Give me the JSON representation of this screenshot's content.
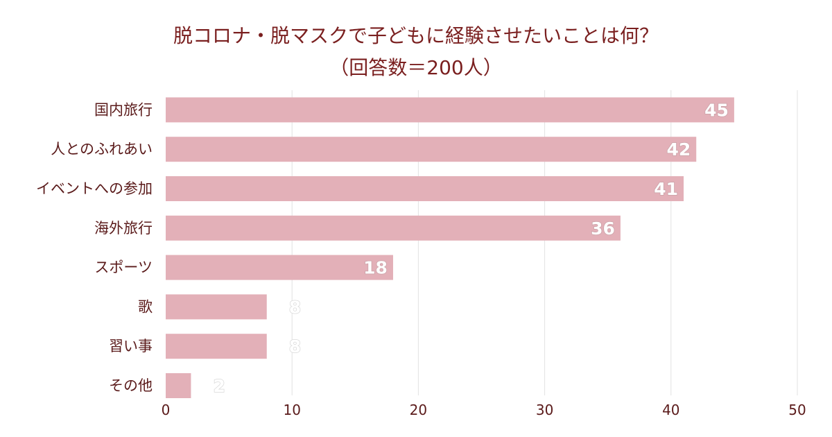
{
  "chart_data": {
    "type": "bar",
    "orientation": "horizontal",
    "title": "脱コロナ・脱マスクで子どもに経験させたいことは何？",
    "subtitle": "（回答数＝200人）",
    "categories": [
      "国内旅行",
      "人とのふれあい",
      "イベントへの参加",
      "海外旅行",
      "スポーツ",
      "歌",
      "習い事",
      "その他"
    ],
    "values": [
      45,
      42,
      41,
      36,
      18,
      8,
      8,
      2
    ],
    "xlim": [
      0,
      50
    ],
    "xticks": [
      0,
      10,
      20,
      30,
      40,
      50
    ],
    "grid": true,
    "xlabel": "",
    "ylabel": "",
    "bar_color": "#e3b0b8",
    "text_color": "#5a1a1a",
    "title_color": "#7a1f1f"
  }
}
